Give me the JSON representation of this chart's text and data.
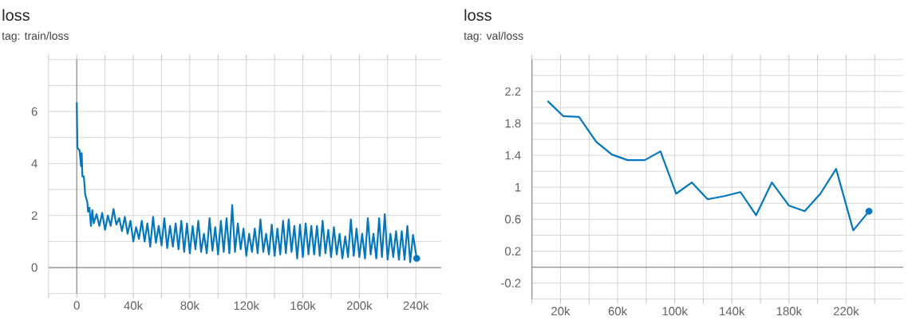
{
  "chart_data": [
    {
      "type": "line",
      "title": "loss",
      "subtitle": "tag: train/loss",
      "grid": true,
      "xlim": [
        -20000,
        258000
      ],
      "ylim": [
        -1,
        8
      ],
      "xticks": [
        {
          "value": -20000,
          "label": null
        },
        0,
        {
          "value": 20000,
          "label": null
        },
        {
          "value": 40000,
          "label": "40k"
        },
        {
          "value": 60000,
          "label": null
        },
        {
          "value": 80000,
          "label": "80k"
        },
        {
          "value": 100000,
          "label": null
        },
        {
          "value": 120000,
          "label": "120k"
        },
        {
          "value": 140000,
          "label": null
        },
        {
          "value": 160000,
          "label": "160k"
        },
        {
          "value": 180000,
          "label": null
        },
        {
          "value": 200000,
          "label": "200k"
        },
        {
          "value": 220000,
          "label": null
        },
        {
          "value": 240000,
          "label": "240k"
        }
      ],
      "yticks": [
        {
          "value": -1,
          "label": null
        },
        0,
        {
          "value": 1,
          "label": null
        },
        2,
        {
          "value": 3,
          "label": null
        },
        4,
        {
          "value": 5,
          "label": null
        },
        6,
        {
          "value": 7,
          "label": null
        },
        {
          "value": 8,
          "label": null
        }
      ],
      "series": [
        {
          "color": "#0277bd",
          "x": [
            0,
            500,
            2000,
            3000,
            3500,
            4000,
            5000,
            6000,
            7500,
            8000,
            9000,
            10000,
            11000,
            12000,
            14000,
            16000,
            18000,
            20000,
            22000,
            24000,
            26000,
            28000,
            30000,
            32000,
            34000,
            36000,
            38000,
            40000,
            42000,
            44000,
            46000,
            48000,
            50000,
            52000,
            54000,
            56000,
            58000,
            60000,
            62000,
            64000,
            66000,
            68000,
            70000,
            72000,
            74000,
            76000,
            78000,
            80000,
            82000,
            84000,
            86000,
            88000,
            90000,
            92000,
            94000,
            96000,
            98000,
            100000,
            102000,
            104000,
            106000,
            108000,
            110000,
            112000,
            114000,
            116000,
            118000,
            120000,
            122000,
            124000,
            126000,
            128000,
            130000,
            132000,
            134000,
            136000,
            138000,
            140000,
            142000,
            144000,
            146000,
            148000,
            150000,
            152000,
            154000,
            156000,
            158000,
            160000,
            162000,
            164000,
            166000,
            168000,
            170000,
            172000,
            174000,
            176000,
            178000,
            180000,
            182000,
            184000,
            186000,
            188000,
            190000,
            192000,
            194000,
            196000,
            198000,
            200000,
            202000,
            204000,
            206000,
            208000,
            210000,
            212000,
            214000,
            216000,
            218000,
            220000,
            222000,
            224000,
            226000,
            228000,
            230000,
            232000,
            234000,
            236000,
            238000,
            240600
          ],
          "values": [
            6.35,
            4.6,
            4.5,
            3.9,
            4.4,
            3.5,
            3.5,
            2.8,
            2.5,
            2.15,
            2.3,
            1.6,
            2.2,
            1.7,
            2.05,
            1.6,
            2.1,
            1.45,
            2.0,
            1.6,
            2.25,
            1.65,
            1.9,
            1.4,
            1.95,
            1.3,
            1.8,
            1.0,
            1.55,
            1.1,
            1.8,
            1.0,
            1.7,
            0.8,
            1.95,
            0.95,
            1.6,
            0.85,
            1.9,
            0.75,
            1.6,
            0.8,
            1.7,
            0.7,
            1.8,
            0.6,
            1.7,
            0.55,
            1.6,
            0.7,
            1.8,
            0.6,
            1.3,
            0.55,
            1.9,
            0.65,
            1.55,
            0.5,
            1.8,
            0.6,
            1.9,
            0.55,
            2.4,
            0.6,
            1.7,
            0.7,
            1.5,
            0.45,
            1.3,
            0.6,
            1.5,
            0.55,
            1.85,
            0.6,
            1.3,
            0.5,
            1.65,
            0.45,
            1.5,
            0.5,
            1.8,
            0.55,
            1.85,
            0.6,
            1.6,
            0.35,
            1.65,
            0.4,
            1.7,
            0.5,
            1.6,
            0.5,
            1.6,
            0.45,
            1.8,
            0.55,
            1.45,
            0.4,
            1.55,
            0.5,
            1.3,
            0.35,
            1.2,
            0.4,
            1.85,
            0.45,
            1.5,
            0.4,
            1.3,
            0.35,
            1.9,
            0.5,
            1.3,
            0.35,
            1.9,
            0.4,
            2.05,
            0.3,
            1.3,
            0.4,
            1.4,
            0.3,
            1.4,
            0.3,
            1.6,
            0.2,
            1.25,
            0.35
          ]
        },
        {
          "type": "scatter",
          "marker": "circle",
          "color": "#0277bd",
          "x": [
            240600
          ],
          "values": [
            0.35
          ]
        }
      ]
    },
    {
      "type": "line",
      "title": "loss",
      "subtitle": "tag: val/loss",
      "grid": true,
      "xlim": [
        0,
        260000
      ],
      "ylim": [
        -0.4,
        2.6
      ],
      "xticks": [
        {
          "value": 0,
          "label": null
        },
        {
          "value": 20000,
          "label": "20k"
        },
        {
          "value": 40000,
          "label": null
        },
        {
          "value": 60000,
          "label": "60k"
        },
        {
          "value": 80000,
          "label": null
        },
        {
          "value": 100000,
          "label": "100k"
        },
        {
          "value": 120000,
          "label": null
        },
        {
          "value": 140000,
          "label": "140k"
        },
        {
          "value": 160000,
          "label": null
        },
        {
          "value": 180000,
          "label": "180k"
        },
        {
          "value": 200000,
          "label": null
        },
        {
          "value": 220000,
          "label": "220k"
        },
        {
          "value": 240000,
          "label": null
        }
      ],
      "yticks": [
        {
          "value": -0.4,
          "label": null
        },
        -0.2,
        {
          "value": 0,
          "label": null
        },
        0.2,
        {
          "value": 0.4,
          "label": null
        },
        0.6,
        {
          "value": 0.8,
          "label": null
        },
        1,
        {
          "value": 1.2,
          "label": null
        },
        1.4,
        {
          "value": 1.6,
          "label": null
        },
        1.8,
        {
          "value": 2.0,
          "label": null
        },
        2.2,
        {
          "value": 2.4,
          "label": null
        },
        {
          "value": 2.6,
          "label": null
        }
      ],
      "series": [
        {
          "color": "#0277bd",
          "x": [
            11000,
            22000,
            33000,
            45000,
            56000,
            67000,
            79000,
            90000,
            101000,
            112000,
            123000,
            135000,
            146000,
            157000,
            168000,
            180000,
            191000,
            202000,
            213000,
            225000,
            236000
          ],
          "values": [
            2.08,
            1.89,
            1.88,
            1.57,
            1.41,
            1.34,
            1.34,
            1.45,
            0.92,
            1.06,
            0.85,
            0.89,
            0.94,
            0.65,
            1.06,
            0.77,
            0.7,
            0.92,
            1.23,
            0.46,
            0.7
          ]
        },
        {
          "type": "scatter",
          "marker": "circle",
          "color": "#0277bd",
          "x": [
            236000
          ],
          "values": [
            0.7
          ]
        }
      ]
    }
  ]
}
